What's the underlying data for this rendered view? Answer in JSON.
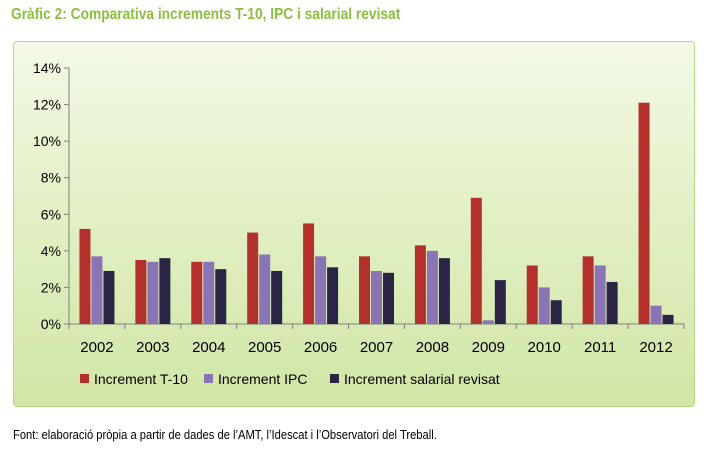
{
  "title": "Gràfic 2: Comparativa increments T-10, IPC i salarial revisat",
  "source_note": "Font: elaboració pròpia a partir de dades de l’AMT, l’Idescat i l’Observatori del Treball.",
  "colors": {
    "title": "#8cbf3f",
    "series": [
      "#b3302c",
      "#8a74b5",
      "#2a2445"
    ]
  },
  "chart_data": {
    "type": "bar",
    "title": "Gràfic 2: Comparativa increments T-10, IPC i salarial revisat",
    "xlabel": "",
    "ylabel": "",
    "ylim": [
      0,
      14
    ],
    "ytick_values": [
      0,
      2,
      4,
      6,
      8,
      10,
      12,
      14
    ],
    "ytick_labels": [
      "0%",
      "2%",
      "4%",
      "6%",
      "8%",
      "10%",
      "12%",
      "14%"
    ],
    "grid": false,
    "legend_position": "bottom",
    "categories": [
      "2002",
      "2003",
      "2004",
      "2005",
      "2006",
      "2007",
      "2008",
      "2009",
      "2010",
      "2011",
      "2012"
    ],
    "series": [
      {
        "name": "Increment T-10",
        "values": [
          5.2,
          3.5,
          3.4,
          5.0,
          5.5,
          3.7,
          4.3,
          6.9,
          3.2,
          3.7,
          12.1
        ]
      },
      {
        "name": "Increment IPC",
        "values": [
          3.7,
          3.4,
          3.4,
          3.8,
          3.7,
          2.9,
          4.0,
          0.2,
          2.0,
          3.2,
          1.0
        ]
      },
      {
        "name": "Increment salarial revisat",
        "values": [
          2.9,
          3.6,
          3.0,
          2.9,
          3.1,
          2.8,
          3.6,
          2.4,
          1.3,
          2.3,
          0.5
        ]
      }
    ]
  }
}
